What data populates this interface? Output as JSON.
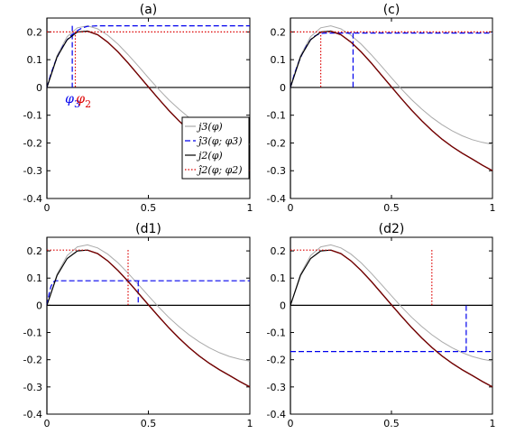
{
  "chart_data": [
    {
      "type": "line",
      "title": "(a)",
      "xlim": [
        0,
        1
      ],
      "ylim": [
        -0.4,
        0.25
      ],
      "xticks": [
        "0",
        "0.5",
        "1"
      ],
      "yticks": [
        "-0.4",
        "-0.3",
        "-0.2",
        "-0.1",
        "0",
        "0.1",
        "0.2"
      ],
      "series": [
        {
          "name": "j3(φ)",
          "color": "#aaaaaa",
          "style": "solid",
          "x": [
            0,
            0.05,
            0.1,
            0.15,
            0.2,
            0.25,
            0.3,
            0.35,
            0.4,
            0.45,
            0.5,
            0.55,
            0.6,
            0.65,
            0.7,
            0.75,
            0.8,
            0.85,
            0.9,
            0.95,
            1
          ],
          "y": [
            0,
            0.115,
            0.183,
            0.215,
            0.222,
            0.211,
            0.188,
            0.156,
            0.118,
            0.077,
            0.035,
            -0.006,
            -0.044,
            -0.078,
            -0.108,
            -0.134,
            -0.156,
            -0.174,
            -0.188,
            -0.198,
            -0.205
          ]
        },
        {
          "name": "ĵ3(φ;φ3)",
          "color": "#0000ee",
          "style": "dashed",
          "x": [
            0,
            0.02,
            0.04,
            0.06,
            0.08,
            0.1,
            0.12,
            0.14,
            0.16,
            0.18,
            0.2,
            0.25,
            0.5,
            0.75,
            1
          ],
          "y": [
            0,
            0.05,
            0.09,
            0.123,
            0.15,
            0.172,
            0.188,
            0.2,
            0.209,
            0.216,
            0.22,
            0.222,
            0.222,
            0.222,
            0.222
          ],
          "drop_x": 0.125
        },
        {
          "name": "j2(φ)",
          "color": "#000000",
          "style": "solid",
          "x": [
            0,
            0.05,
            0.1,
            0.15,
            0.2,
            0.25,
            0.3,
            0.35,
            0.4,
            0.45,
            0.5,
            0.55,
            0.6,
            0.65,
            0.7,
            0.75,
            0.8,
            0.85,
            0.9,
            0.95,
            1
          ],
          "y": [
            0,
            0.11,
            0.172,
            0.2,
            0.203,
            0.19,
            0.163,
            0.128,
            0.088,
            0.045,
            0.002,
            -0.041,
            -0.082,
            -0.12,
            -0.155,
            -0.186,
            -0.213,
            -0.237,
            -0.258,
            -0.28,
            -0.3
          ]
        },
        {
          "name": "ĵ2(φ;φ2)",
          "color": "#dd0000",
          "style": "dotted",
          "x": [
            0,
            0.14,
            0.2,
            0.5,
            0.75,
            1
          ],
          "y": [
            0.2,
            0.2,
            0.2,
            0.2,
            0.2,
            0.2
          ],
          "drop_x": 0.14
        }
      ],
      "overlay": {
        "color": "#7a0000",
        "x": [
          0.2,
          0.25,
          0.3,
          0.35,
          0.4,
          0.45,
          0.5,
          0.55,
          0.6,
          0.65,
          0.7,
          0.75,
          0.8,
          0.85,
          0.9,
          0.95,
          1
        ],
        "y": [
          0.203,
          0.19,
          0.163,
          0.128,
          0.088,
          0.045,
          0.002,
          -0.041,
          -0.082,
          -0.12,
          -0.155,
          -0.186,
          -0.213,
          -0.237,
          -0.258,
          -0.28,
          -0.3
        ]
      },
      "markers": [
        {
          "symbol": "φ",
          "sub": "3",
          "color": "#0000ee",
          "x": 0.125
        },
        {
          "symbol": "φ",
          "sub": "2",
          "color": "#dd0000",
          "x": 0.17
        }
      ],
      "legend": {
        "placement": "bottom-right",
        "entries": [
          {
            "label": "j3(φ)",
            "color": "#aaaaaa",
            "style": "solid"
          },
          {
            "label": "ĵ3(φ; φ3)",
            "color": "#0000ee",
            "style": "dashed"
          },
          {
            "label": "j2(φ)",
            "color": "#000000",
            "style": "solid"
          },
          {
            "label": "ĵ2(φ; φ2)",
            "color": "#dd0000",
            "style": "dotted"
          }
        ]
      }
    },
    {
      "type": "line",
      "title": "(c)",
      "xlim": [
        0,
        1
      ],
      "ylim": [
        -0.4,
        0.25
      ],
      "xticks": [
        "0",
        "0.5",
        "1"
      ],
      "yticks": [
        "-0.4",
        "-0.3",
        "-0.2",
        "-0.1",
        "0",
        "0.1",
        "0.2"
      ],
      "series": [
        {
          "color": "#aaaaaa",
          "style": "solid",
          "x": [
            0,
            0.05,
            0.1,
            0.15,
            0.2,
            0.25,
            0.3,
            0.35,
            0.4,
            0.45,
            0.5,
            0.55,
            0.6,
            0.65,
            0.7,
            0.75,
            0.8,
            0.85,
            0.9,
            0.95,
            1
          ],
          "y": [
            0,
            0.115,
            0.183,
            0.215,
            0.222,
            0.211,
            0.188,
            0.156,
            0.118,
            0.077,
            0.035,
            -0.006,
            -0.044,
            -0.078,
            -0.108,
            -0.134,
            -0.156,
            -0.174,
            -0.188,
            -0.198,
            -0.205
          ]
        },
        {
          "color": "#0000ee",
          "style": "dashed",
          "x": [
            0,
            0.02,
            0.04,
            0.06,
            0.08,
            0.1,
            0.12,
            0.14,
            0.16,
            0.18,
            0.2,
            0.25,
            0.5,
            0.75,
            1
          ],
          "y": [
            0,
            0.05,
            0.09,
            0.123,
            0.15,
            0.172,
            0.185,
            0.192,
            0.195,
            0.196,
            0.196,
            0.196,
            0.196,
            0.196,
            0.196
          ],
          "drop_x": 0.31
        },
        {
          "color": "#000000",
          "style": "solid",
          "x": [
            0,
            0.05,
            0.1,
            0.15,
            0.2,
            0.25,
            0.3,
            0.35,
            0.4,
            0.45,
            0.5,
            0.55,
            0.6,
            0.65,
            0.7,
            0.75,
            0.8,
            0.85,
            0.9,
            0.95,
            1
          ],
          "y": [
            0,
            0.11,
            0.172,
            0.2,
            0.203,
            0.19,
            0.163,
            0.128,
            0.088,
            0.045,
            0.002,
            -0.041,
            -0.082,
            -0.12,
            -0.155,
            -0.186,
            -0.213,
            -0.237,
            -0.258,
            -0.28,
            -0.3
          ]
        },
        {
          "color": "#dd0000",
          "style": "dotted",
          "x": [
            0,
            0.15,
            0.5,
            0.75,
            1
          ],
          "y": [
            0.2,
            0.2,
            0.2,
            0.2,
            0.2
          ],
          "drop_x": 0.15
        }
      ],
      "overlay": {
        "color": "#7a0000",
        "x": [
          0.2,
          0.25,
          0.3,
          0.35,
          0.4,
          0.45,
          0.5,
          0.55,
          0.6,
          0.65,
          0.7,
          0.75,
          0.8,
          0.85,
          0.9,
          0.95,
          1
        ],
        "y": [
          0.203,
          0.19,
          0.163,
          0.128,
          0.088,
          0.045,
          0.002,
          -0.041,
          -0.082,
          -0.12,
          -0.155,
          -0.186,
          -0.213,
          -0.237,
          -0.258,
          -0.28,
          -0.3
        ]
      }
    },
    {
      "type": "line",
      "title": "(d1)",
      "xlim": [
        0,
        1
      ],
      "ylim": [
        -0.4,
        0.25
      ],
      "xticks": [
        "0",
        "0.5",
        "1"
      ],
      "yticks": [
        "-0.4",
        "-0.3",
        "-0.2",
        "-0.1",
        "0",
        "0.1",
        "0.2"
      ],
      "series": [
        {
          "color": "#aaaaaa",
          "style": "solid",
          "x": [
            0,
            0.05,
            0.1,
            0.15,
            0.2,
            0.25,
            0.3,
            0.35,
            0.4,
            0.45,
            0.5,
            0.55,
            0.6,
            0.65,
            0.7,
            0.75,
            0.8,
            0.85,
            0.9,
            0.95,
            1
          ],
          "y": [
            0,
            0.115,
            0.183,
            0.215,
            0.222,
            0.211,
            0.188,
            0.156,
            0.118,
            0.077,
            0.035,
            -0.006,
            -0.044,
            -0.078,
            -0.108,
            -0.134,
            -0.156,
            -0.174,
            -0.188,
            -0.198,
            -0.205
          ]
        },
        {
          "color": "#0000ee",
          "style": "dashed",
          "x": [
            0,
            0.01,
            0.02,
            0.03,
            0.04,
            0.06,
            0.1,
            0.5,
            1
          ],
          "y": [
            0,
            0.04,
            0.07,
            0.085,
            0.09,
            0.09,
            0.09,
            0.09,
            0.09
          ],
          "drop_x": 0.45
        },
        {
          "color": "#000000",
          "style": "solid",
          "x": [
            0,
            0.05,
            0.1,
            0.15,
            0.2,
            0.25,
            0.3,
            0.35,
            0.4,
            0.45,
            0.5,
            0.55,
            0.6,
            0.65,
            0.7,
            0.75,
            0.8,
            0.85,
            0.9,
            0.95,
            1
          ],
          "y": [
            0,
            0.11,
            0.172,
            0.2,
            0.203,
            0.19,
            0.163,
            0.128,
            0.088,
            0.045,
            0.002,
            -0.041,
            -0.082,
            -0.12,
            -0.155,
            -0.186,
            -0.213,
            -0.237,
            -0.258,
            -0.28,
            -0.3
          ]
        },
        {
          "color": "#dd0000",
          "style": "dotted",
          "x": [
            0,
            0.15,
            0.2
          ],
          "y": [
            0.203,
            0.203,
            0.203
          ],
          "drop_x": 0.4
        }
      ],
      "overlay": {
        "color": "#7a0000",
        "x": [
          0.2,
          0.25,
          0.3,
          0.35,
          0.4,
          0.45,
          0.5,
          0.55,
          0.6,
          0.65,
          0.7,
          0.75,
          0.8,
          0.85,
          0.9,
          0.95,
          1
        ],
        "y": [
          0.203,
          0.19,
          0.163,
          0.128,
          0.088,
          0.045,
          0.002,
          -0.041,
          -0.082,
          -0.12,
          -0.155,
          -0.186,
          -0.213,
          -0.237,
          -0.258,
          -0.28,
          -0.3
        ]
      }
    },
    {
      "type": "line",
      "title": "(d2)",
      "xlim": [
        0,
        1
      ],
      "ylim": [
        -0.4,
        0.25
      ],
      "xticks": [
        "0",
        "0.5",
        "1"
      ],
      "yticks": [
        "-0.4",
        "-0.3",
        "-0.2",
        "-0.1",
        "0",
        "0.1",
        "0.2"
      ],
      "series": [
        {
          "color": "#aaaaaa",
          "style": "solid",
          "x": [
            0,
            0.05,
            0.1,
            0.15,
            0.2,
            0.25,
            0.3,
            0.35,
            0.4,
            0.45,
            0.5,
            0.55,
            0.6,
            0.65,
            0.7,
            0.75,
            0.8,
            0.85,
            0.9,
            0.95,
            1
          ],
          "y": [
            0,
            0.115,
            0.183,
            0.215,
            0.222,
            0.211,
            0.188,
            0.156,
            0.118,
            0.077,
            0.035,
            -0.006,
            -0.044,
            -0.078,
            -0.108,
            -0.134,
            -0.156,
            -0.174,
            -0.188,
            -0.198,
            -0.205
          ]
        },
        {
          "color": "#0000ee",
          "style": "dashed",
          "x": [
            0,
            0.87,
            1
          ],
          "y": [
            -0.17,
            -0.17,
            -0.17
          ],
          "drop_x": 0.87,
          "drop_to": 0
        },
        {
          "color": "#000000",
          "style": "solid",
          "x": [
            0,
            0.05,
            0.1,
            0.15,
            0.2,
            0.25,
            0.3,
            0.35,
            0.4,
            0.45,
            0.5,
            0.55,
            0.6,
            0.65,
            0.7,
            0.75,
            0.8,
            0.85,
            0.9,
            0.95,
            1
          ],
          "y": [
            0,
            0.11,
            0.172,
            0.2,
            0.203,
            0.19,
            0.163,
            0.128,
            0.088,
            0.045,
            0.002,
            -0.041,
            -0.082,
            -0.12,
            -0.155,
            -0.186,
            -0.213,
            -0.237,
            -0.258,
            -0.28,
            -0.3
          ]
        },
        {
          "color": "#dd0000",
          "style": "dotted",
          "x": [
            0,
            0.15,
            0.2
          ],
          "y": [
            0.203,
            0.203,
            0.203
          ],
          "drop_x": 0.7,
          "drop_to": 0
        }
      ],
      "overlay": {
        "color": "#7a0000",
        "x": [
          0.2,
          0.25,
          0.3,
          0.35,
          0.4,
          0.45,
          0.5,
          0.55,
          0.6,
          0.65,
          0.7,
          0.75,
          0.8,
          0.85,
          0.9,
          0.95,
          1
        ],
        "y": [
          0.203,
          0.19,
          0.163,
          0.128,
          0.088,
          0.045,
          0.002,
          -0.041,
          -0.082,
          -0.12,
          -0.155,
          -0.186,
          -0.213,
          -0.237,
          -0.258,
          -0.28,
          -0.3
        ]
      }
    }
  ]
}
